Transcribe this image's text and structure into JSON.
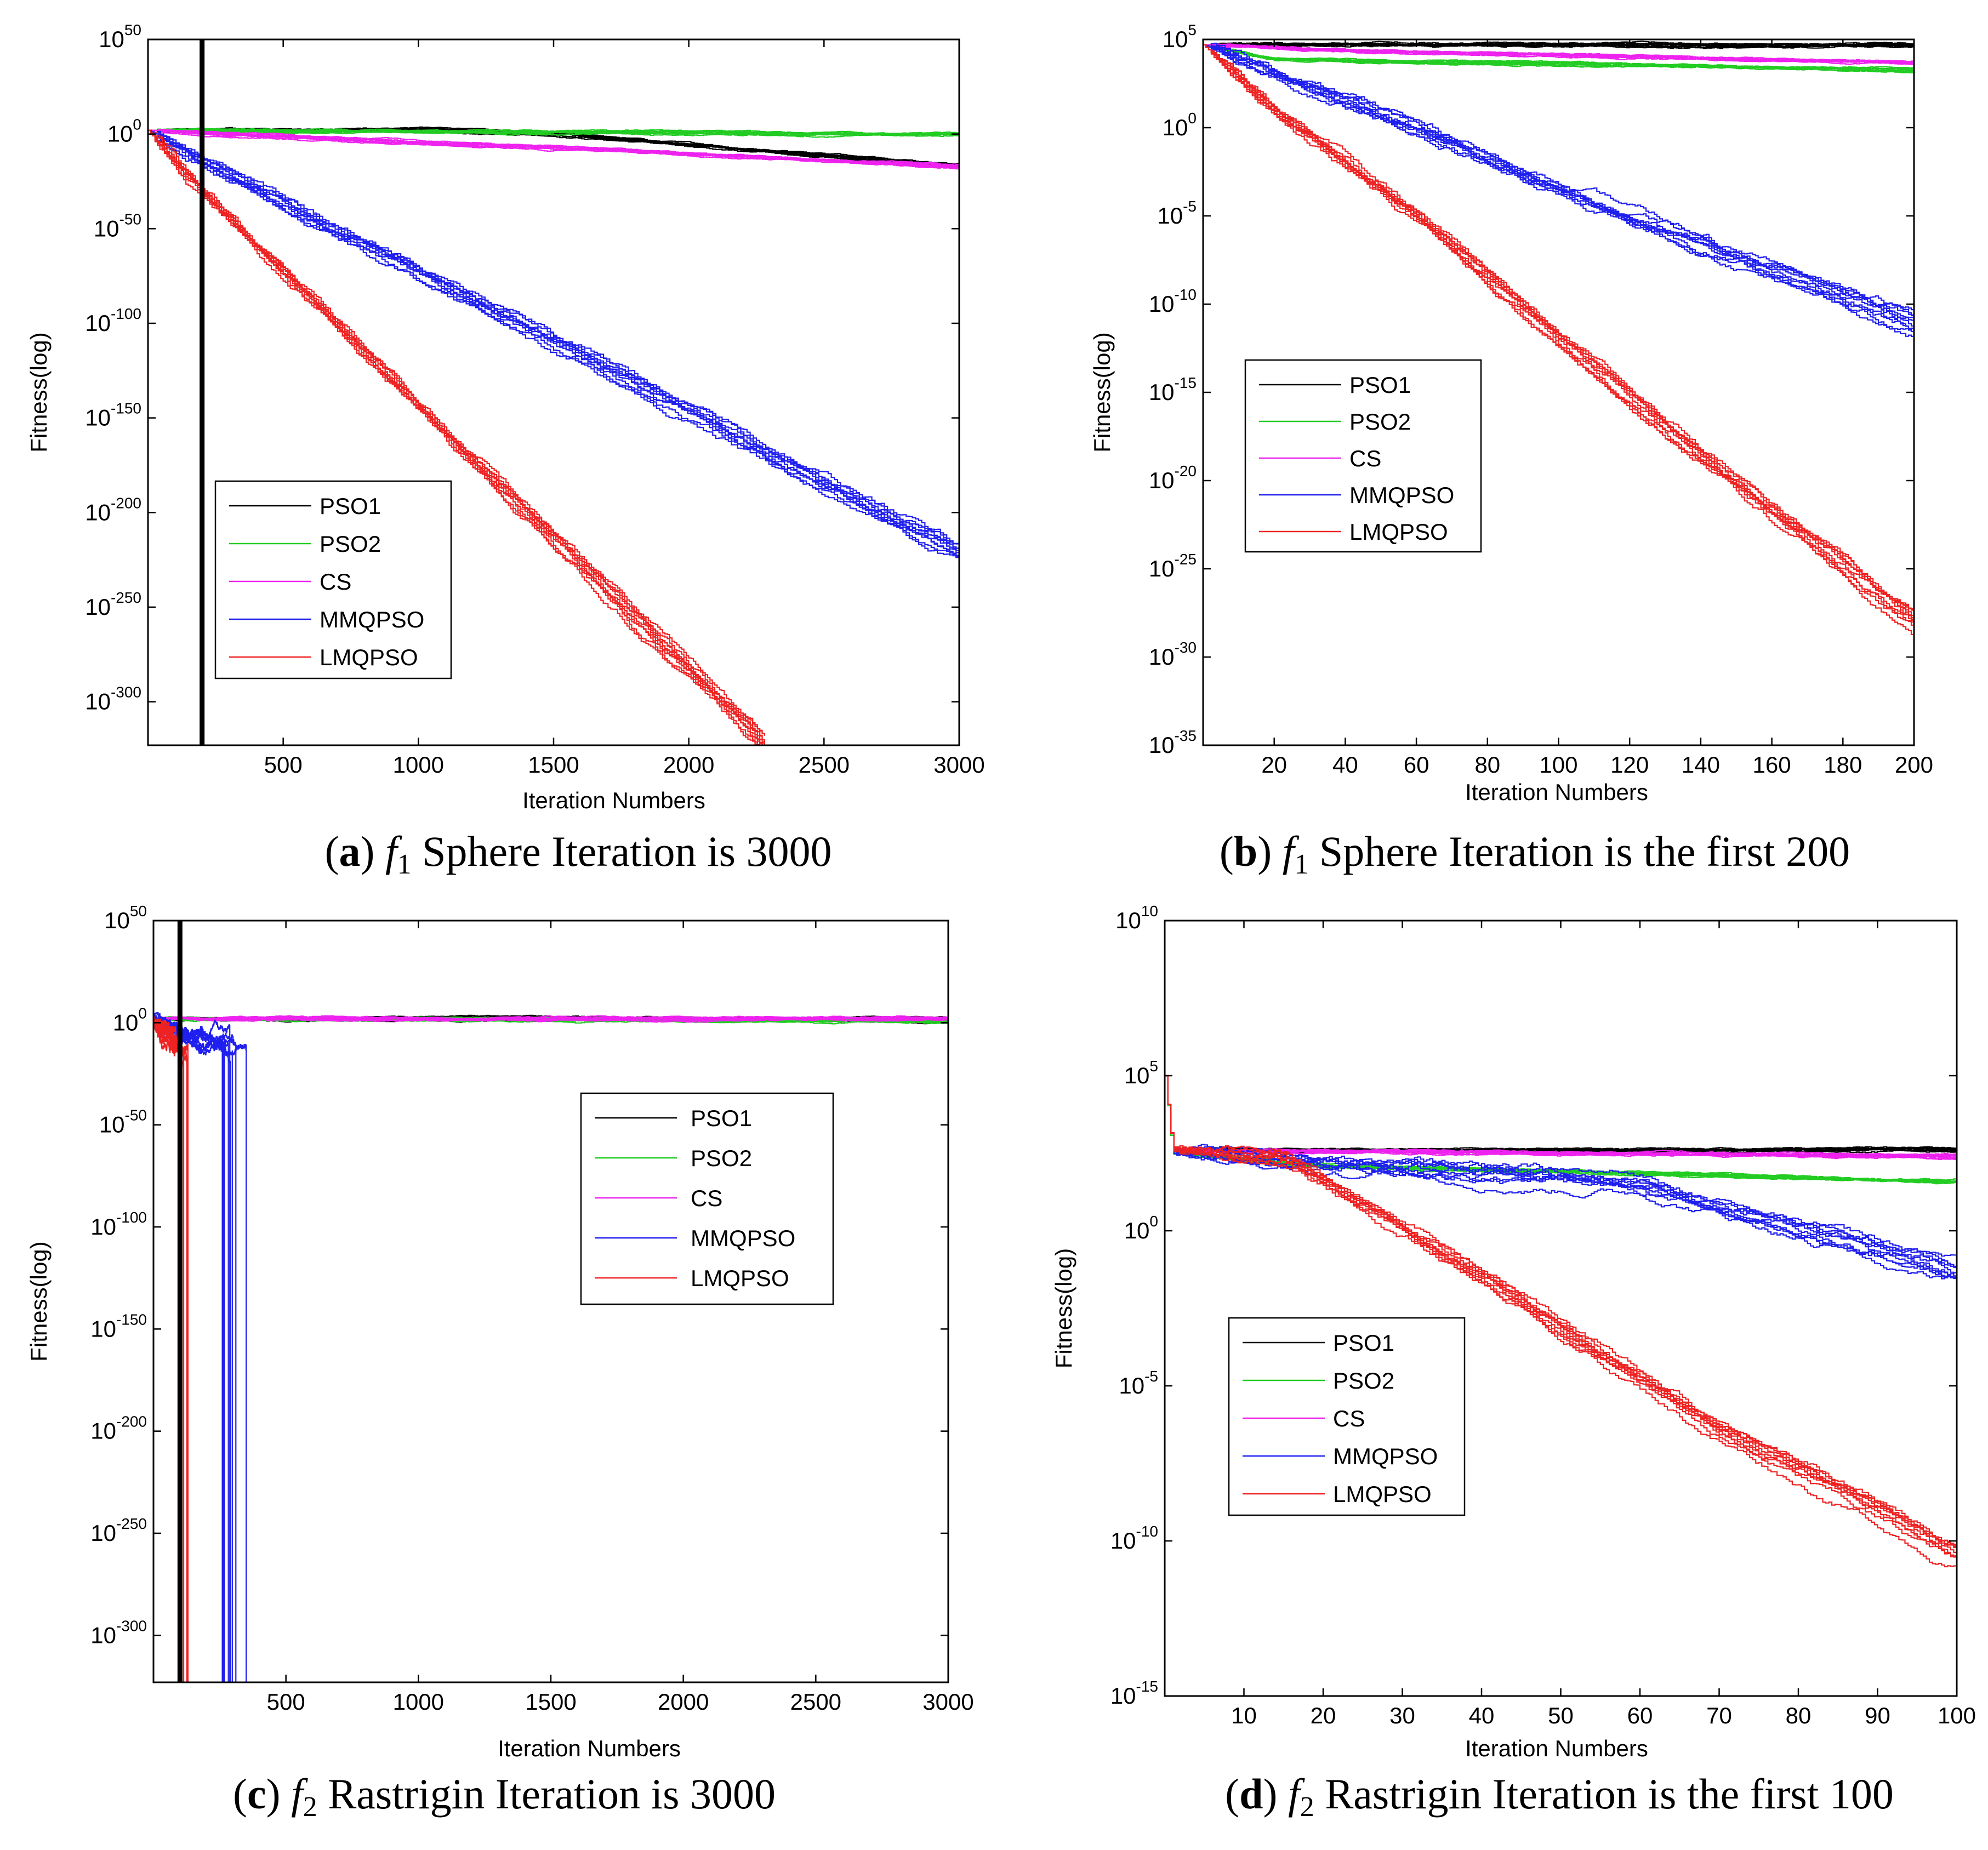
{
  "figure": {
    "colors": {
      "PSO1": "#000000",
      "PSO2": "#22cc22",
      "CS": "#ee22ee",
      "MMQPSO": "#1f1fee",
      "LMQPSO": "#ee2222"
    }
  },
  "chart_data": [
    {
      "id": "a",
      "type": "line",
      "caption": {
        "letter": "a",
        "func": "f",
        "sub": "1",
        "text": "Sphere Iteration is 3000"
      },
      "xlabel": "Iteration Numbers",
      "ylabel": "Fitness(log)",
      "yscale": "log",
      "xlim": [
        0,
        3000
      ],
      "ylim_exp": [
        -323,
        50
      ],
      "xticks": [
        500,
        1000,
        1500,
        2000,
        2500,
        3000
      ],
      "yticks_exp": [
        50,
        0,
        -50,
        -100,
        -150,
        -200,
        -250,
        -300
      ],
      "ytick_labels": [
        "10",
        "10",
        "10",
        "10",
        "10",
        "10",
        "10",
        "10"
      ],
      "ytick_exps": [
        "50",
        "0",
        "-50",
        "-100",
        "-150",
        "-200",
        "-250",
        "-300"
      ],
      "vline_x": 200,
      "legend": {
        "position": "bottom-left",
        "entries": [
          "PSO1",
          "PSO2",
          "CS",
          "MMQPSO",
          "LMQPSO"
        ]
      },
      "series": [
        {
          "name": "PSO1",
          "runs": 10,
          "x": [
            0,
            1000,
            1500,
            3000
          ],
          "y_exp": [
            2,
            2,
            0,
            -17
          ]
        },
        {
          "name": "PSO2",
          "runs": 10,
          "x": [
            0,
            3000
          ],
          "y_exp": [
            2,
            0
          ]
        },
        {
          "name": "CS",
          "runs": 10,
          "x": [
            0,
            3000
          ],
          "y_exp": [
            2,
            -17
          ]
        },
        {
          "name": "MMQPSO",
          "runs": 10,
          "x": [
            0,
            200,
            3000
          ],
          "y_exp": [
            2,
            -14,
            -220
          ]
        },
        {
          "name": "LMQPSO",
          "runs": 10,
          "x": [
            0,
            200,
            2280
          ],
          "y_exp": [
            2,
            -31,
            -323
          ]
        }
      ]
    },
    {
      "id": "b",
      "type": "line",
      "caption": {
        "letter": "b",
        "func": "f",
        "sub": "1",
        "text": "Sphere Iteration is the first 200"
      },
      "xlabel": "Iteration Numbers",
      "ylabel": "Fitness(log)",
      "yscale": "log",
      "xlim": [
        0,
        200
      ],
      "ylim_exp": [
        -35,
        5
      ],
      "xticks": [
        20,
        40,
        60,
        80,
        100,
        120,
        140,
        160,
        180,
        200
      ],
      "yticks_exp": [
        5,
        0,
        -5,
        -10,
        -15,
        -20,
        -25,
        -30,
        -35
      ],
      "ytick_labels": [
        "10",
        "10",
        "10",
        "10",
        "10",
        "10",
        "10",
        "10",
        "10"
      ],
      "ytick_exps": [
        "5",
        "0",
        "-5",
        "-10",
        "-15",
        "-20",
        "-25",
        "-30",
        "-35"
      ],
      "legend": {
        "position": "middle-left",
        "entries": [
          "PSO1",
          "PSO2",
          "CS",
          "MMQPSO",
          "LMQPSO"
        ]
      },
      "series": [
        {
          "name": "PSO1",
          "runs": 10,
          "x": [
            0,
            200
          ],
          "y_exp": [
            4.7,
            4.7
          ]
        },
        {
          "name": "PSO2",
          "runs": 10,
          "x": [
            0,
            20,
            100,
            200
          ],
          "y_exp": [
            4.7,
            3.9,
            3.6,
            3.3
          ]
        },
        {
          "name": "CS",
          "runs": 10,
          "x": [
            0,
            50,
            200
          ],
          "y_exp": [
            4.7,
            4.3,
            3.7
          ]
        },
        {
          "name": "MMQPSO",
          "runs": 10,
          "x": [
            0,
            20,
            60,
            120,
            200
          ],
          "y_exp": [
            4.7,
            3.0,
            0,
            -5,
            -11
          ]
        },
        {
          "name": "LMQPSO",
          "runs": 10,
          "x": [
            0,
            20,
            60,
            100,
            150,
            200
          ],
          "y_exp": [
            4.7,
            1.0,
            -5,
            -12,
            -20,
            -28
          ]
        }
      ]
    },
    {
      "id": "c",
      "type": "line",
      "caption": {
        "letter": "c",
        "func": "f",
        "sub": "2",
        "text": "Rastrigin Iteration is 3000"
      },
      "xlabel": "Iteration Numbers",
      "ylabel": "Fitness(log)",
      "yscale": "log",
      "xlim": [
        0,
        3000
      ],
      "ylim_exp": [
        -323,
        50
      ],
      "xticks": [
        500,
        1000,
        1500,
        2000,
        2500,
        3000
      ],
      "yticks_exp": [
        50,
        0,
        -50,
        -100,
        -150,
        -200,
        -250,
        -300
      ],
      "ytick_labels": [
        "10",
        "10",
        "10",
        "10",
        "10",
        "10",
        "10",
        "10"
      ],
      "ytick_exps": [
        "50",
        "0",
        "-50",
        "-100",
        "-150",
        "-200",
        "-250",
        "-300"
      ],
      "vline_x": 100,
      "legend": {
        "position": "top-right",
        "entries": [
          "PSO1",
          "PSO2",
          "CS",
          "MMQPSO",
          "LMQPSO"
        ]
      },
      "series": [
        {
          "name": "PSO1",
          "runs": 10,
          "x": [
            0,
            3000
          ],
          "y_exp": [
            2,
            2
          ]
        },
        {
          "name": "PSO2",
          "runs": 10,
          "x": [
            0,
            3000
          ],
          "y_exp": [
            2,
            1
          ]
        },
        {
          "name": "CS",
          "runs": 10,
          "x": [
            0,
            1200,
            3000
          ],
          "y_exp": [
            2,
            2,
            2
          ]
        },
        {
          "name": "MMQPSO",
          "runs": 10,
          "x": [
            0,
            100,
            350
          ],
          "y_exp": [
            2,
            -5,
            -12
          ],
          "drop_range": [
            240,
            360
          ]
        },
        {
          "name": "LMQPSO",
          "runs": 10,
          "x": [
            0,
            60,
            130
          ],
          "y_exp": [
            2,
            -6,
            -15
          ],
          "drop_range": [
            100,
            135
          ]
        }
      ]
    },
    {
      "id": "d",
      "type": "line",
      "caption": {
        "letter": "d",
        "func": "f",
        "sub": "2",
        "text": "Rastrigin Iteration is the first 100"
      },
      "xlabel": "Iteration Numbers",
      "ylabel": "Fitness(log)",
      "yscale": "log",
      "xlim": [
        0,
        100
      ],
      "ylim_exp": [
        -15,
        10
      ],
      "xticks": [
        10,
        20,
        30,
        40,
        50,
        60,
        70,
        80,
        90,
        100
      ],
      "yticks_exp": [
        10,
        5,
        0,
        -5,
        -10,
        -15
      ],
      "ytick_labels": [
        "10",
        "10",
        "10",
        "10",
        "10",
        "10"
      ],
      "ytick_exps": [
        "10",
        "5",
        "0",
        "-5",
        "-10",
        "-15"
      ],
      "legend": {
        "position": "middle-left",
        "entries": [
          "PSO1",
          "PSO2",
          "CS",
          "MMQPSO",
          "LMQPSO"
        ]
      },
      "series": [
        {
          "name": "PSO1",
          "runs": 10,
          "x": [
            0,
            1,
            100
          ],
          "y_exp": [
            5,
            2.6,
            2.6
          ]
        },
        {
          "name": "PSO2",
          "runs": 10,
          "x": [
            0,
            1,
            20,
            100
          ],
          "y_exp": [
            5,
            2.5,
            2.1,
            1.6
          ]
        },
        {
          "name": "CS",
          "runs": 10,
          "x": [
            0,
            1,
            100
          ],
          "y_exp": [
            5,
            2.6,
            2.4
          ]
        },
        {
          "name": "MMQPSO",
          "runs": 10,
          "x": [
            0,
            1,
            20,
            60,
            100
          ],
          "y_exp": [
            5,
            2.6,
            2.3,
            1.5,
            -1.5
          ]
        },
        {
          "name": "LMQPSO",
          "runs": 10,
          "x": [
            0,
            1,
            15,
            40,
            70,
            100
          ],
          "y_exp": [
            5,
            2.6,
            2.4,
            -1.5,
            -6.5,
            -10.5
          ]
        }
      ]
    }
  ]
}
